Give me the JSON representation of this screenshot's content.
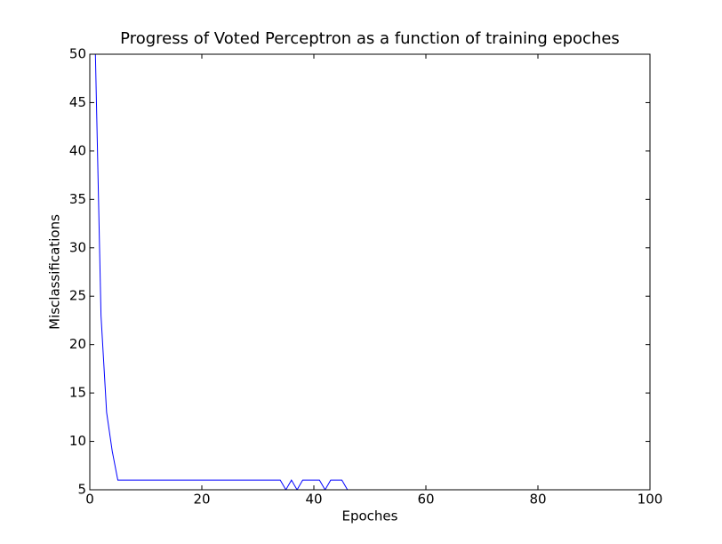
{
  "chart_data": {
    "type": "line",
    "title": "Progress of Voted Perceptron as a function of training epoches",
    "x_label": "Epoches",
    "y_label": "Misclassifications",
    "x": [
      1,
      2,
      3,
      4,
      5,
      6,
      7,
      8,
      9,
      10,
      11,
      12,
      13,
      14,
      15,
      16,
      17,
      18,
      19,
      20,
      21,
      22,
      23,
      24,
      25,
      26,
      27,
      28,
      29,
      30,
      31,
      32,
      33,
      34,
      35,
      36,
      37,
      38,
      39,
      40,
      41,
      42,
      43,
      44,
      45,
      46,
      47,
      48,
      49,
      50,
      51,
      52,
      53,
      54,
      55,
      56,
      57,
      58,
      59,
      60,
      61,
      62,
      63,
      64,
      65,
      66,
      67,
      68,
      69,
      70,
      71,
      72,
      73,
      74,
      75,
      76,
      77,
      78,
      79,
      80,
      81,
      82,
      83,
      84,
      85,
      86,
      87,
      88,
      89,
      90,
      91,
      92,
      93,
      94,
      95,
      96,
      97,
      98,
      99,
      100
    ],
    "series": [
      {
        "color": "#0000ff",
        "values": [
          50,
          23,
          13,
          9,
          6,
          6,
          6,
          6,
          6,
          6,
          6,
          6,
          6,
          6,
          6,
          6,
          6,
          6,
          6,
          6,
          6,
          6,
          6,
          6,
          6,
          6,
          6,
          6,
          6,
          6,
          6,
          6,
          6,
          6,
          5,
          6,
          5,
          6,
          6,
          6,
          6,
          5,
          6,
          6,
          6,
          5,
          5,
          5,
          5,
          5,
          5,
          5,
          5,
          5,
          5,
          5,
          5,
          5,
          5,
          5,
          5,
          5,
          5,
          5,
          5,
          5,
          5,
          5,
          5,
          5,
          5,
          5,
          5,
          5,
          5,
          5,
          5,
          5,
          5,
          5,
          5,
          5,
          5,
          5,
          5,
          5,
          5,
          5,
          5,
          5,
          5,
          5,
          5,
          5,
          5,
          5,
          5,
          5,
          5,
          5
        ]
      }
    ],
    "xlim": [
      0,
      100
    ],
    "ylim": [
      5,
      50
    ],
    "xticks": [
      0,
      20,
      40,
      60,
      80,
      100
    ],
    "yticks": [
      5,
      10,
      15,
      20,
      25,
      30,
      35,
      40,
      45,
      50
    ],
    "grid": false
  }
}
